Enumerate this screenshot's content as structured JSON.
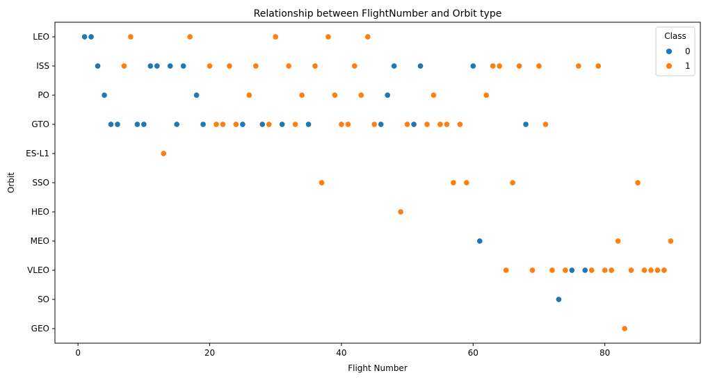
{
  "chart_data": {
    "type": "scatter",
    "title": "Relationship between FlightNumber and Orbit type",
    "xlabel": "Flight Number",
    "ylabel": "Orbit",
    "xlim": [
      -3.5,
      94.5
    ],
    "xticks": [
      0,
      20,
      40,
      60,
      80
    ],
    "categories": [
      "LEO",
      "ISS",
      "PO",
      "GTO",
      "ES-L1",
      "SSO",
      "HEO",
      "MEO",
      "VLEO",
      "SO",
      "GEO"
    ],
    "grid": false,
    "legend": {
      "title": "Class",
      "placement": "top-right",
      "entries": [
        "0",
        "1"
      ]
    },
    "colors": {
      "0": "#1f77b4",
      "1": "#ff7f0e"
    },
    "points": [
      {
        "x": 1,
        "y": "LEO",
        "class": 0
      },
      {
        "x": 2,
        "y": "LEO",
        "class": 0
      },
      {
        "x": 3,
        "y": "ISS",
        "class": 0
      },
      {
        "x": 4,
        "y": "PO",
        "class": 0
      },
      {
        "x": 5,
        "y": "GTO",
        "class": 0
      },
      {
        "x": 6,
        "y": "GTO",
        "class": 0
      },
      {
        "x": 7,
        "y": "ISS",
        "class": 1
      },
      {
        "x": 8,
        "y": "LEO",
        "class": 1
      },
      {
        "x": 9,
        "y": "GTO",
        "class": 0
      },
      {
        "x": 10,
        "y": "GTO",
        "class": 0
      },
      {
        "x": 11,
        "y": "ISS",
        "class": 0
      },
      {
        "x": 12,
        "y": "ISS",
        "class": 0
      },
      {
        "x": 13,
        "y": "ES-L1",
        "class": 1
      },
      {
        "x": 14,
        "y": "ISS",
        "class": 0
      },
      {
        "x": 15,
        "y": "GTO",
        "class": 0
      },
      {
        "x": 16,
        "y": "ISS",
        "class": 0
      },
      {
        "x": 17,
        "y": "LEO",
        "class": 1
      },
      {
        "x": 18,
        "y": "PO",
        "class": 0
      },
      {
        "x": 19,
        "y": "GTO",
        "class": 0
      },
      {
        "x": 20,
        "y": "ISS",
        "class": 1
      },
      {
        "x": 21,
        "y": "GTO",
        "class": 1
      },
      {
        "x": 22,
        "y": "GTO",
        "class": 1
      },
      {
        "x": 23,
        "y": "ISS",
        "class": 1
      },
      {
        "x": 24,
        "y": "GTO",
        "class": 1
      },
      {
        "x": 25,
        "y": "GTO",
        "class": 0
      },
      {
        "x": 26,
        "y": "PO",
        "class": 1
      },
      {
        "x": 27,
        "y": "ISS",
        "class": 1
      },
      {
        "x": 28,
        "y": "GTO",
        "class": 0
      },
      {
        "x": 29,
        "y": "GTO",
        "class": 1
      },
      {
        "x": 30,
        "y": "LEO",
        "class": 1
      },
      {
        "x": 31,
        "y": "GTO",
        "class": 0
      },
      {
        "x": 32,
        "y": "ISS",
        "class": 1
      },
      {
        "x": 33,
        "y": "GTO",
        "class": 1
      },
      {
        "x": 34,
        "y": "PO",
        "class": 1
      },
      {
        "x": 35,
        "y": "GTO",
        "class": 0
      },
      {
        "x": 36,
        "y": "ISS",
        "class": 1
      },
      {
        "x": 37,
        "y": "SSO",
        "class": 1
      },
      {
        "x": 38,
        "y": "LEO",
        "class": 1
      },
      {
        "x": 39,
        "y": "PO",
        "class": 1
      },
      {
        "x": 40,
        "y": "GTO",
        "class": 1
      },
      {
        "x": 41,
        "y": "GTO",
        "class": 1
      },
      {
        "x": 42,
        "y": "ISS",
        "class": 1
      },
      {
        "x": 43,
        "y": "PO",
        "class": 1
      },
      {
        "x": 44,
        "y": "LEO",
        "class": 1
      },
      {
        "x": 45,
        "y": "GTO",
        "class": 1
      },
      {
        "x": 46,
        "y": "GTO",
        "class": 0
      },
      {
        "x": 47,
        "y": "PO",
        "class": 0
      },
      {
        "x": 48,
        "y": "ISS",
        "class": 0
      },
      {
        "x": 49,
        "y": "HEO",
        "class": 1
      },
      {
        "x": 50,
        "y": "GTO",
        "class": 1
      },
      {
        "x": 51,
        "y": "GTO",
        "class": 0
      },
      {
        "x": 52,
        "y": "ISS",
        "class": 0
      },
      {
        "x": 53,
        "y": "GTO",
        "class": 1
      },
      {
        "x": 54,
        "y": "PO",
        "class": 1
      },
      {
        "x": 55,
        "y": "GTO",
        "class": 1
      },
      {
        "x": 56,
        "y": "GTO",
        "class": 1
      },
      {
        "x": 57,
        "y": "SSO",
        "class": 1
      },
      {
        "x": 58,
        "y": "GTO",
        "class": 1
      },
      {
        "x": 59,
        "y": "SSO",
        "class": 1
      },
      {
        "x": 60,
        "y": "ISS",
        "class": 0
      },
      {
        "x": 61,
        "y": "MEO",
        "class": 0
      },
      {
        "x": 62,
        "y": "PO",
        "class": 1
      },
      {
        "x": 63,
        "y": "ISS",
        "class": 1
      },
      {
        "x": 64,
        "y": "ISS",
        "class": 1
      },
      {
        "x": 65,
        "y": "VLEO",
        "class": 1
      },
      {
        "x": 66,
        "y": "SSO",
        "class": 1
      },
      {
        "x": 67,
        "y": "ISS",
        "class": 1
      },
      {
        "x": 68,
        "y": "GTO",
        "class": 0
      },
      {
        "x": 69,
        "y": "VLEO",
        "class": 1
      },
      {
        "x": 70,
        "y": "ISS",
        "class": 1
      },
      {
        "x": 71,
        "y": "GTO",
        "class": 1
      },
      {
        "x": 72,
        "y": "VLEO",
        "class": 1
      },
      {
        "x": 73,
        "y": "SO",
        "class": 0
      },
      {
        "x": 74,
        "y": "VLEO",
        "class": 1
      },
      {
        "x": 75,
        "y": "VLEO",
        "class": 0
      },
      {
        "x": 76,
        "y": "ISS",
        "class": 1
      },
      {
        "x": 77,
        "y": "VLEO",
        "class": 0
      },
      {
        "x": 78,
        "y": "VLEO",
        "class": 1
      },
      {
        "x": 79,
        "y": "ISS",
        "class": 1
      },
      {
        "x": 80,
        "y": "VLEO",
        "class": 1
      },
      {
        "x": 81,
        "y": "VLEO",
        "class": 1
      },
      {
        "x": 82,
        "y": "MEO",
        "class": 1
      },
      {
        "x": 83,
        "y": "GEO",
        "class": 1
      },
      {
        "x": 84,
        "y": "VLEO",
        "class": 1
      },
      {
        "x": 85,
        "y": "SSO",
        "class": 1
      },
      {
        "x": 86,
        "y": "VLEO",
        "class": 1
      },
      {
        "x": 87,
        "y": "VLEO",
        "class": 1
      },
      {
        "x": 88,
        "y": "VLEO",
        "class": 1
      },
      {
        "x": 89,
        "y": "VLEO",
        "class": 1
      },
      {
        "x": 90,
        "y": "MEO",
        "class": 1
      }
    ]
  }
}
